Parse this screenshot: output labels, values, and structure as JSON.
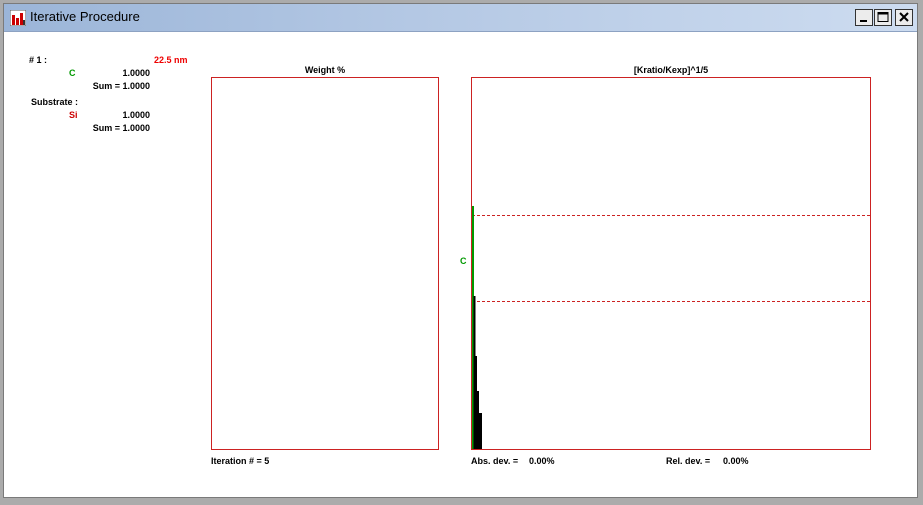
{
  "window": {
    "title": "Iterative Procedure"
  },
  "layer": {
    "label": "# 1 :",
    "thickness": "22.5 nm",
    "element": "C",
    "value": "1.0000",
    "sum": "Sum = 1.0000"
  },
  "substrate": {
    "label": "Substrate :",
    "element": "Si",
    "value": "1.0000",
    "sum": "Sum = 1.0000"
  },
  "weight_panel": {
    "title": "Weight %",
    "footer": "Iteration # = 5"
  },
  "ratio_panel": {
    "title": "[Kratio/Kexp]^1/5",
    "element_label": "C",
    "abs_dev_label": "Abs. dev. =",
    "abs_dev_value": "0.00%",
    "rel_dev_label": "Rel. dev. =",
    "rel_dev_value": "0.00%"
  },
  "colors": {
    "panel_border": "#cc2222",
    "carbon": "#009900",
    "silicon": "#cc0000",
    "thickness": "#ee0000",
    "bars": "#000000"
  }
}
